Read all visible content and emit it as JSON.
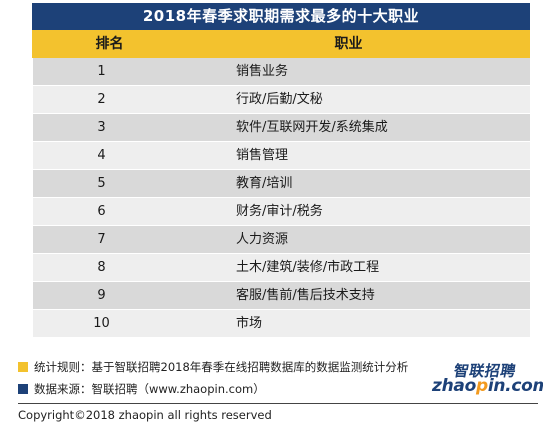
{
  "table": {
    "title": "2018年春季求职期需求最多的十大职业",
    "header_rank": "排名",
    "header_job": "职业",
    "rows": [
      {
        "rank": "1",
        "job": "销售业务"
      },
      {
        "rank": "2",
        "job": "行政/后勤/文秘"
      },
      {
        "rank": "3",
        "job": "软件/互联网开发/系统集成"
      },
      {
        "rank": "4",
        "job": "销售管理"
      },
      {
        "rank": "5",
        "job": "教育/培训"
      },
      {
        "rank": "6",
        "job": "财务/审计/税务"
      },
      {
        "rank": "7",
        "job": "人力资源"
      },
      {
        "rank": "8",
        "job": "土木/建筑/装修/市政工程"
      },
      {
        "rank": "9",
        "job": "客服/售前/售后技术支持"
      },
      {
        "rank": "10",
        "job": "市场"
      }
    ]
  },
  "notes": {
    "rule": "统计规则：基于智联招聘2018年春季在线招聘数据库的数据监测统计分析",
    "source": "数据来源：智联招聘（www.zhaopin.com）"
  },
  "logo": {
    "cn": "智联招聘",
    "en_prefix": "zhao",
    "en_accent": "p",
    "en_suffix": "in.com"
  },
  "copyright": "Copyright©2018 zhaopin all rights reserved",
  "colors": {
    "title_bg": "#1d4178",
    "header_bg": "#f3c22e",
    "row_dark": "#d9d9d9",
    "row_light": "#eeeeee",
    "accent_orange": "#f39a1e"
  }
}
